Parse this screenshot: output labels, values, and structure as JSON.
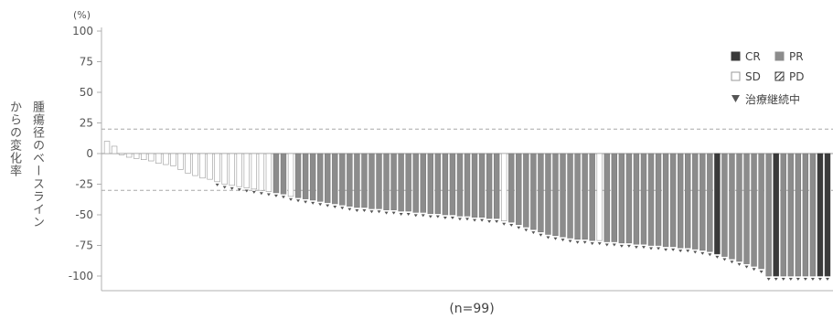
{
  "chart_data": {
    "type": "bar",
    "unit_label": "(%)",
    "ylabel_lines": [
      "腫瘍径のベースライン",
      "からの変化率"
    ],
    "xlabel": "(n=99)",
    "ylim": [
      -110,
      100
    ],
    "yticks": [
      100,
      75,
      50,
      25,
      0,
      -25,
      -50,
      -75,
      -100
    ],
    "reference_lines": [
      20,
      -30
    ],
    "grid": false,
    "legend_placement": "top-right",
    "legend": [
      {
        "key": "CR",
        "label": "CR",
        "style": "solid",
        "color": "#3a3a3a"
      },
      {
        "key": "PR",
        "label": "PR",
        "style": "solid",
        "color": "#8c8c8c"
      },
      {
        "key": "SD",
        "label": "SD",
        "style": "outline",
        "color": "#ffffff"
      },
      {
        "key": "PD",
        "label": "PD",
        "style": "hatched",
        "color": "#3a3a3a"
      },
      {
        "key": "ongoing",
        "label": "治療継続中",
        "style": "triangle",
        "color": "#555555"
      }
    ],
    "values": [
      10,
      6,
      -1,
      -3,
      -4,
      -5,
      -6,
      -8,
      -9,
      -10,
      -13,
      -16,
      -18,
      -20,
      -21,
      -23,
      -25,
      -26,
      -27,
      -28,
      -29,
      -30,
      -31,
      -32,
      -33,
      -35,
      -36,
      -37,
      -38,
      -39,
      -40,
      -41,
      -42,
      -43,
      -44,
      -44,
      -45,
      -45,
      -46,
      -46,
      -47,
      -47,
      -48,
      -48,
      -49,
      -49,
      -50,
      -50,
      -51,
      -51,
      -52,
      -52,
      -53,
      -53,
      -55,
      -56,
      -58,
      -60,
      -62,
      -64,
      -66,
      -67,
      -68,
      -69,
      -70,
      -70,
      -71,
      -71,
      -72,
      -72,
      -73,
      -73,
      -74,
      -74,
      -75,
      -75,
      -76,
      -76,
      -77,
      -77,
      -78,
      -79,
      -80,
      -82,
      -84,
      -86,
      -88,
      -90,
      -92,
      -94,
      -100,
      -100,
      -100,
      -100,
      -100,
      -100,
      -100,
      -100,
      -100
    ],
    "response": [
      "SD",
      "SD",
      "SD",
      "SD",
      "SD",
      "SD",
      "SD",
      "SD",
      "SD",
      "SD",
      "SD",
      "SD",
      "SD",
      "SD",
      "SD",
      "SD",
      "SD",
      "SD",
      "SD",
      "SD",
      "SD",
      "SD",
      "SD",
      "PR",
      "PR",
      "SD",
      "PR",
      "PR",
      "PR",
      "PR",
      "PR",
      "PR",
      "PR",
      "PR",
      "PR",
      "PR",
      "PR",
      "PR",
      "PR",
      "PR",
      "PR",
      "PR",
      "PR",
      "PR",
      "PR",
      "PR",
      "PR",
      "PR",
      "PR",
      "PR",
      "PR",
      "PR",
      "PR",
      "PR",
      "SD",
      "PR",
      "PR",
      "PR",
      "PR",
      "PR",
      "PR",
      "PR",
      "PR",
      "PR",
      "PR",
      "PR",
      "PR",
      "SD",
      "PR",
      "PR",
      "PR",
      "PR",
      "PR",
      "PR",
      "PR",
      "PR",
      "PR",
      "PR",
      "PR",
      "PR",
      "PR",
      "PR",
      "PR",
      "CR",
      "PR",
      "PR",
      "PR",
      "PR",
      "PR",
      "PR",
      "PR",
      "CR",
      "PR",
      "PR",
      "PR",
      "PR",
      "PR",
      "CR",
      "CR"
    ],
    "ongoing": [
      false,
      false,
      false,
      false,
      false,
      false,
      false,
      false,
      false,
      false,
      false,
      false,
      false,
      false,
      false,
      true,
      true,
      true,
      true,
      true,
      true,
      true,
      true,
      true,
      true,
      true,
      true,
      true,
      true,
      true,
      true,
      true,
      true,
      true,
      true,
      true,
      true,
      true,
      true,
      true,
      true,
      true,
      true,
      true,
      true,
      true,
      true,
      true,
      true,
      true,
      true,
      true,
      true,
      true,
      true,
      true,
      true,
      true,
      true,
      true,
      true,
      true,
      true,
      true,
      true,
      true,
      true,
      true,
      true,
      true,
      true,
      true,
      true,
      true,
      true,
      true,
      true,
      true,
      true,
      true,
      true,
      true,
      true,
      true,
      true,
      true,
      true,
      true,
      true,
      true,
      true,
      true,
      true,
      true,
      true,
      true,
      true,
      true,
      true
    ]
  }
}
